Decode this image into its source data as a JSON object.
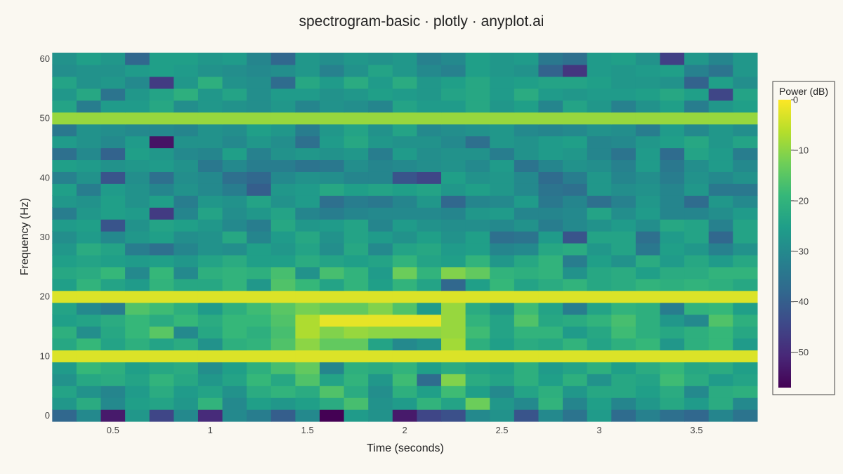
{
  "chart_data": {
    "type": "heatmap",
    "title": "spectrogram-basic · plotly · anyplot.ai",
    "xlabel": "Time (seconds)",
    "ylabel": "Frequency (Hz)",
    "colorbar_title": "Power (dB)",
    "colorscale": "viridis",
    "zmin": -57,
    "zmax": 0,
    "x_range": [
      0.19,
      3.82
    ],
    "y_range": [
      -1,
      61
    ],
    "x_ticks": [
      0.5,
      1,
      1.5,
      2,
      2.5,
      3,
      3.5
    ],
    "x_tick_labels": [
      "0.5",
      "1",
      "1.5",
      "2",
      "2.5",
      "3",
      "3.5"
    ],
    "y_ticks": [
      0,
      10,
      20,
      30,
      40,
      50,
      60
    ],
    "y_tick_labels": [
      "0",
      "10",
      "20",
      "30",
      "40",
      "50",
      "60"
    ],
    "colorbar_ticks": [
      0,
      -10,
      -20,
      -30,
      -40,
      -50
    ],
    "colorbar_tick_labels": [
      "0",
      "−10",
      "−20",
      "−30",
      "−40",
      "−50"
    ],
    "time_bins": [
      0.25,
      0.375,
      0.5,
      0.625,
      0.75,
      0.875,
      1.0,
      1.125,
      1.25,
      1.375,
      1.5,
      1.625,
      1.75,
      1.875,
      2.0,
      2.125,
      2.25,
      2.375,
      2.5,
      2.625,
      2.75,
      2.875,
      3.0,
      3.125,
      3.25,
      3.375,
      3.5,
      3.625,
      3.75
    ],
    "freq_bins": [
      0,
      2,
      4,
      6,
      8,
      10,
      12,
      14,
      16,
      18,
      20,
      22,
      24,
      26,
      28,
      30,
      32,
      34,
      36,
      38,
      40,
      42,
      44,
      46,
      48,
      50,
      52,
      54,
      56,
      58,
      60
    ],
    "power_db_rows": [
      [
        -38,
        -30,
        -53,
        -27,
        -45,
        -30,
        -50,
        -30,
        -33,
        -40,
        -30,
        -57,
        -26,
        -28,
        -53,
        -45,
        -43,
        -30,
        -28,
        -42,
        -30,
        -35,
        -26,
        -37,
        -32,
        -36,
        -38,
        -31,
        -35
      ],
      [
        -27,
        -22,
        -30,
        -25,
        -24,
        -27,
        -20,
        -30,
        -25,
        -27,
        -25,
        -22,
        -17,
        -28,
        -26,
        -20,
        -24,
        -13,
        -27,
        -30,
        -20,
        -31,
        -25,
        -31,
        -27,
        -23,
        -26,
        -22,
        -30
      ],
      [
        -24,
        -28,
        -31,
        -26,
        -22,
        -26,
        -24,
        -28,
        -22,
        -20,
        -22,
        -16,
        -22,
        -29,
        -21,
        -25,
        -18,
        -25,
        -30,
        -24,
        -21,
        -27,
        -23,
        -23,
        -25,
        -22,
        -30,
        -22,
        -21
      ],
      [
        -28,
        -23,
        -22,
        -24,
        -20,
        -23,
        -27,
        -24,
        -19,
        -23,
        -16,
        -24,
        -20,
        -27,
        -18,
        -37,
        -11,
        -22,
        -24,
        -21,
        -25,
        -21,
        -28,
        -23,
        -24,
        -18,
        -22,
        -26,
        -24
      ],
      [
        -26,
        -19,
        -21,
        -25,
        -23,
        -22,
        -29,
        -25,
        -21,
        -17,
        -14,
        -31,
        -21,
        -22,
        -20,
        -25,
        -22,
        -24,
        -25,
        -21,
        -26,
        -24,
        -21,
        -25,
        -22,
        -19,
        -23,
        -22,
        -25
      ],
      [
        -3,
        -3,
        -3,
        -3,
        -3,
        -3,
        -3,
        -3,
        -3,
        -3,
        -3,
        -3,
        -3,
        -3,
        -3,
        -3,
        -3,
        -3,
        -3,
        -3,
        -3,
        -3,
        -3,
        -3,
        -3,
        -3,
        -3,
        -3,
        -3
      ],
      [
        -23,
        -19,
        -24,
        -21,
        -24,
        -22,
        -28,
        -21,
        -20,
        -16,
        -10,
        -14,
        -14,
        -24,
        -30,
        -28,
        -8,
        -21,
        -25,
        -22,
        -23,
        -20,
        -24,
        -21,
        -19,
        -27,
        -21,
        -19,
        -26
      ],
      [
        -21,
        -29,
        -23,
        -19,
        -15,
        -30,
        -23,
        -19,
        -21,
        -17,
        -7,
        -11,
        -9,
        -10,
        -10,
        -10,
        -9,
        -18,
        -24,
        -20,
        -20,
        -26,
        -23,
        -18,
        -21,
        -23,
        -21,
        -19,
        -23
      ],
      [
        -25,
        -24,
        -22,
        -19,
        -22,
        -19,
        -22,
        -19,
        -19,
        -16,
        -7,
        -2,
        -2,
        -2,
        -2,
        -2,
        -9,
        -20,
        -24,
        -16,
        -23,
        -22,
        -20,
        -17,
        -21,
        -27,
        -30,
        -16,
        -21
      ],
      [
        -24,
        -30,
        -33,
        -16,
        -18,
        -21,
        -26,
        -21,
        -18,
        -15,
        -12,
        -14,
        -14,
        -11,
        -16,
        -26,
        -9,
        -22,
        -27,
        -18,
        -24,
        -33,
        -24,
        -20,
        -21,
        -33,
        -20,
        -19,
        -25
      ],
      [
        -3,
        -3,
        -3,
        -3,
        -3,
        -3,
        -3,
        -3,
        -3,
        -3,
        -3,
        -3,
        -3,
        -3,
        -3,
        -3,
        -3,
        -3,
        -3,
        -3,
        -3,
        -3,
        -3,
        -3,
        -3,
        -3,
        -3,
        -3,
        -3
      ],
      [
        -25,
        -20,
        -24,
        -26,
        -20,
        -23,
        -23,
        -20,
        -27,
        -16,
        -19,
        -24,
        -20,
        -25,
        -20,
        -24,
        -38,
        -25,
        -19,
        -24,
        -22,
        -20,
        -23,
        -22,
        -20,
        -21,
        -20,
        -21,
        -23
      ],
      [
        -23,
        -22,
        -19,
        -30,
        -19,
        -30,
        -21,
        -20,
        -21,
        -17,
        -28,
        -17,
        -20,
        -26,
        -13,
        -20,
        -11,
        -14,
        -20,
        -21,
        -20,
        -28,
        -23,
        -22,
        -25,
        -22,
        -22,
        -20,
        -20
      ],
      [
        -25,
        -24,
        -25,
        -26,
        -25,
        -27,
        -24,
        -22,
        -25,
        -25,
        -22,
        -24,
        -25,
        -24,
        -20,
        -24,
        -25,
        -20,
        -27,
        -23,
        -20,
        -33,
        -25,
        -28,
        -22,
        -26,
        -23,
        -26,
        -23
      ],
      [
        -27,
        -22,
        -24,
        -33,
        -36,
        -31,
        -28,
        -29,
        -25,
        -27,
        -24,
        -29,
        -23,
        -30,
        -24,
        -23,
        -26,
        -25,
        -31,
        -30,
        -23,
        -22,
        -27,
        -24,
        -34,
        -25,
        -27,
        -32,
        -28
      ],
      [
        -29,
        -26,
        -30,
        -27,
        -25,
        -29,
        -28,
        -23,
        -31,
        -26,
        -23,
        -28,
        -24,
        -26,
        -28,
        -25,
        -28,
        -25,
        -36,
        -35,
        -26,
        -42,
        -24,
        -24,
        -36,
        -26,
        -24,
        -38,
        -24
      ],
      [
        -26,
        -25,
        -42,
        -28,
        -24,
        -25,
        -27,
        -30,
        -33,
        -23,
        -27,
        -26,
        -24,
        -31,
        -26,
        -28,
        -29,
        -29,
        -30,
        -28,
        -33,
        -30,
        -28,
        -26,
        -29,
        -23,
        -24,
        -32,
        -24
      ],
      [
        -33,
        -27,
        -25,
        -26,
        -47,
        -31,
        -24,
        -29,
        -27,
        -24,
        -31,
        -33,
        -31,
        -30,
        -30,
        -30,
        -31,
        -27,
        -26,
        -31,
        -31,
        -30,
        -24,
        -29,
        -26,
        -31,
        -31,
        -29,
        -26
      ],
      [
        -27,
        -28,
        -25,
        -28,
        -25,
        -33,
        -27,
        -28,
        -24,
        -28,
        -26,
        -36,
        -33,
        -34,
        -31,
        -27,
        -38,
        -31,
        -30,
        -26,
        -34,
        -31,
        -36,
        -32,
        -27,
        -31,
        -37,
        -27,
        -30
      ],
      [
        -25,
        -33,
        -26,
        -28,
        -31,
        -28,
        -30,
        -33,
        -40,
        -27,
        -26,
        -23,
        -25,
        -24,
        -25,
        -24,
        -27,
        -25,
        -27,
        -30,
        -35,
        -36,
        -27,
        -29,
        -28,
        -31,
        -27,
        -34,
        -34
      ],
      [
        -32,
        -28,
        -42,
        -29,
        -36,
        -29,
        -30,
        -36,
        -38,
        -30,
        -28,
        -29,
        -31,
        -31,
        -42,
        -45,
        -25,
        -28,
        -27,
        -30,
        -37,
        -33,
        -27,
        -31,
        -29,
        -33,
        -28,
        -30,
        -28
      ],
      [
        -25,
        -26,
        -28,
        -27,
        -26,
        -28,
        -34,
        -30,
        -33,
        -33,
        -35,
        -34,
        -29,
        -31,
        -30,
        -29,
        -28,
        -30,
        -26,
        -35,
        -31,
        -28,
        -29,
        -32,
        -26,
        -34,
        -29,
        -26,
        -30
      ],
      [
        -36,
        -30,
        -39,
        -25,
        -27,
        -30,
        -31,
        -25,
        -32,
        -28,
        -27,
        -28,
        -27,
        -33,
        -26,
        -29,
        -28,
        -28,
        -33,
        -28,
        -26,
        -27,
        -31,
        -35,
        -26,
        -37,
        -24,
        -26,
        -33
      ],
      [
        -26,
        -28,
        -30,
        -26,
        -54,
        -28,
        -28,
        -30,
        -27,
        -29,
        -36,
        -26,
        -23,
        -27,
        -28,
        -28,
        -30,
        -36,
        -27,
        -28,
        -26,
        -25,
        -31,
        -30,
        -27,
        -25,
        -23,
        -27,
        -24
      ],
      [
        -34,
        -28,
        -29,
        -30,
        -30,
        -31,
        -28,
        -29,
        -25,
        -27,
        -33,
        -27,
        -24,
        -28,
        -24,
        -30,
        -29,
        -28,
        -27,
        -30,
        -31,
        -30,
        -28,
        -29,
        -33,
        -26,
        -30,
        -27,
        -29
      ],
      [
        -9,
        -9,
        -9,
        -9,
        -9,
        -9,
        -9,
        -9,
        -9,
        -9,
        -9,
        -9,
        -9,
        -9,
        -9,
        -9,
        -9,
        -9,
        -9,
        -9,
        -9,
        -9,
        -9,
        -9,
        -9,
        -9,
        -9,
        -9,
        -9
      ],
      [
        -24,
        -33,
        -26,
        -26,
        -23,
        -29,
        -27,
        -28,
        -29,
        -27,
        -31,
        -28,
        -29,
        -31,
        -24,
        -26,
        -26,
        -23,
        -27,
        -25,
        -31,
        -24,
        -27,
        -32,
        -28,
        -25,
        -33,
        -27,
        -25
      ],
      [
        -27,
        -23,
        -35,
        -27,
        -24,
        -21,
        -27,
        -24,
        -29,
        -26,
        -26,
        -28,
        -27,
        -25,
        -26,
        -27,
        -24,
        -23,
        -26,
        -22,
        -26,
        -27,
        -26,
        -26,
        -25,
        -23,
        -25,
        -45,
        -24
      ],
      [
        -24,
        -28,
        -27,
        -30,
        -47,
        -27,
        -21,
        -28,
        -29,
        -37,
        -23,
        -26,
        -22,
        -26,
        -22,
        -27,
        -25,
        -23,
        -26,
        -25,
        -24,
        -24,
        -25,
        -27,
        -27,
        -28,
        -39,
        -25,
        -29
      ],
      [
        -29,
        -28,
        -28,
        -26,
        -25,
        -26,
        -28,
        -29,
        -30,
        -29,
        -27,
        -32,
        -28,
        -24,
        -27,
        -30,
        -32,
        -25,
        -27,
        -28,
        -39,
        -48,
        -26,
        -27,
        -26,
        -25,
        -32,
        -35,
        -27
      ],
      [
        -28,
        -25,
        -27,
        -38,
        -25,
        -25,
        -27,
        -26,
        -31,
        -38,
        -27,
        -29,
        -27,
        -28,
        -27,
        -32,
        -30,
        -25,
        -27,
        -26,
        -34,
        -36,
        -26,
        -25,
        -28,
        -46,
        -27,
        -31,
        -27
      ]
    ]
  }
}
